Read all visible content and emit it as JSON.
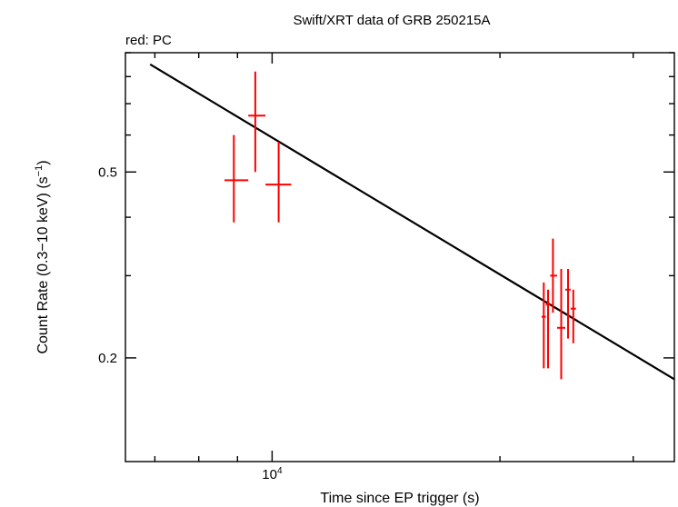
{
  "chart_data": {
    "type": "scatter",
    "title": "Swift/XRT data of GRB 250215A",
    "subtitle": "red: PC",
    "xlabel": "Time since EP trigger (s)",
    "ylabel": "Count Rate (0.3−10 keV) (s",
    "ylabel_sup": "−1",
    "ylabel_end": ")",
    "x_scale": "log",
    "y_scale": "log",
    "xlim": [
      6400,
      34000
    ],
    "ylim": [
      0.12,
      0.9
    ],
    "x_ticks": [
      {
        "value": 10000,
        "base": "10",
        "exp": "4"
      }
    ],
    "y_ticks": [
      {
        "value": 0.5,
        "label": "0.5"
      },
      {
        "value": 0.2,
        "label": "0.2"
      }
    ],
    "grid": false,
    "colors": {
      "data": "#ff0000",
      "model": "#000000"
    },
    "series": [
      {
        "points": [
          {
            "x": 8900,
            "xerr": [
              8650,
              9300
            ],
            "y": 0.48,
            "yerr": [
              0.39,
              0.6
            ]
          },
          {
            "x": 9500,
            "xerr": [
              9300,
              9800
            ],
            "y": 0.66,
            "yerr": [
              0.5,
              0.82
            ]
          },
          {
            "x": 10200,
            "xerr": [
              9800,
              10600
            ],
            "y": 0.47,
            "yerr": [
              0.39,
              0.58
            ]
          },
          {
            "x": 22850,
            "xerr": [
              22700,
              23000
            ],
            "y": 0.245,
            "yerr": [
              0.19,
              0.29
            ]
          },
          {
            "x": 23150,
            "xerr": [
              23000,
              23300
            ],
            "y": 0.26,
            "yerr": [
              0.19,
              0.28
            ]
          },
          {
            "x": 23500,
            "xerr": [
              23300,
              23800
            ],
            "y": 0.3,
            "yerr": [
              0.25,
              0.36
            ]
          },
          {
            "x": 24100,
            "xerr": [
              23800,
              24400
            ],
            "y": 0.232,
            "yerr": [
              0.18,
              0.31
            ]
          },
          {
            "x": 24600,
            "xerr": [
              24400,
              24800
            ],
            "y": 0.28,
            "yerr": [
              0.22,
              0.31
            ]
          },
          {
            "x": 25000,
            "xerr": [
              24800,
              25200
            ],
            "y": 0.255,
            "yerr": [
              0.215,
              0.28
            ]
          }
        ]
      }
    ],
    "model": {
      "x": [
        6900,
        34000
      ],
      "y": [
        0.85,
        0.18
      ]
    }
  }
}
